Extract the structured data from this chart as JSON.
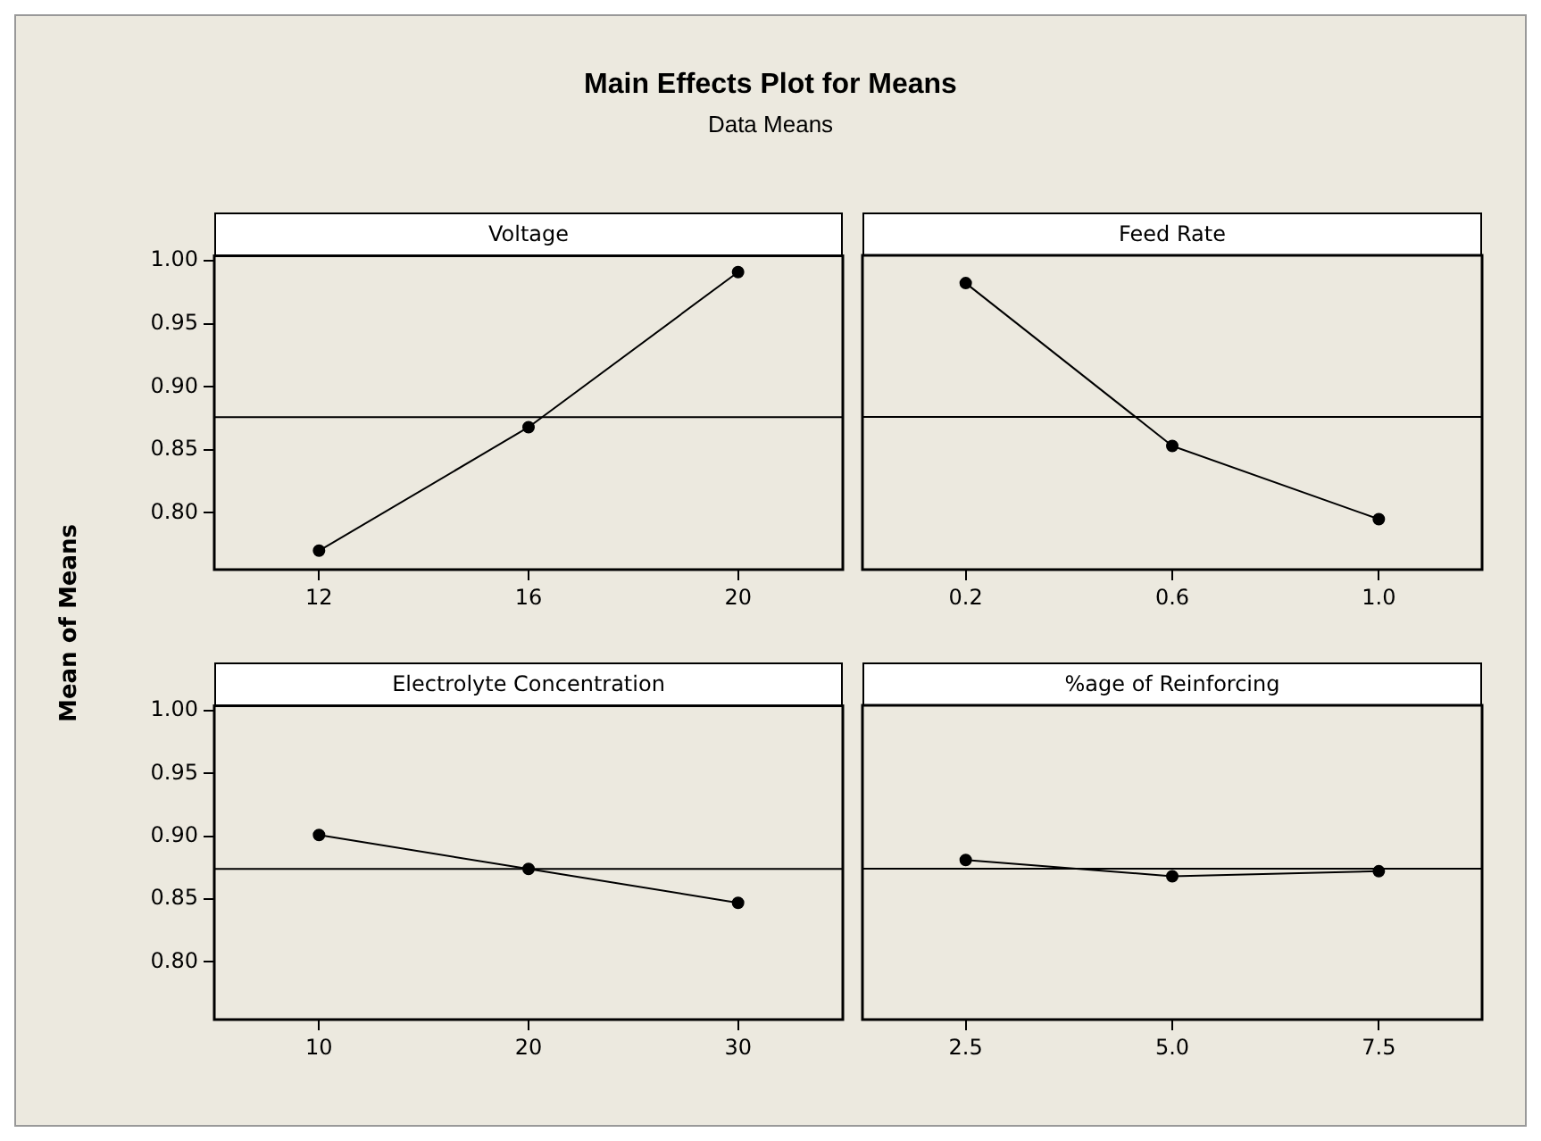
{
  "chart_data": [
    {
      "type": "line",
      "title": "Main Effects Plot for Means",
      "subtitle": "Data Means",
      "ylabel": "Mean of Means",
      "xlabel": "Voltage",
      "categories": [
        "12",
        "16",
        "20"
      ],
      "values": [
        0.77,
        0.868,
        0.991
      ],
      "color": "#000000",
      "marker": "circle",
      "ylim": [
        0.755,
        1.004
      ],
      "yticks": [
        {
          "value": 0.8,
          "label": "0.80"
        },
        {
          "value": 0.85,
          "label": "0.85"
        },
        {
          "value": 0.9,
          "label": "0.90"
        },
        {
          "value": 0.95,
          "label": "0.95"
        },
        {
          "value": 1.0,
          "label": "1.00"
        }
      ],
      "ref_lines": [
        {
          "axis": "y",
          "value": 0.876,
          "color": "#000000"
        }
      ],
      "grid": false
    },
    {
      "type": "line",
      "xlabel": "Feed Rate",
      "categories": [
        "0.2",
        "0.6",
        "1.0"
      ],
      "values": [
        0.982,
        0.853,
        0.795
      ],
      "color": "#000000",
      "marker": "circle",
      "ylim": [
        0.755,
        1.004
      ],
      "ref_lines": [
        {
          "axis": "y",
          "value": 0.876,
          "color": "#000000"
        }
      ],
      "grid": false,
      "tick_labels": "x"
    },
    {
      "type": "line",
      "xlabel": "Electrolyte Concentration",
      "categories": [
        "10",
        "20",
        "30"
      ],
      "values": [
        0.901,
        0.874,
        0.847
      ],
      "color": "#000000",
      "marker": "circle",
      "ylim": [
        0.754,
        1.004
      ],
      "yticks": [
        {
          "value": 0.8,
          "label": "0.80"
        },
        {
          "value": 0.85,
          "label": "0.85"
        },
        {
          "value": 0.9,
          "label": "0.90"
        },
        {
          "value": 0.95,
          "label": "0.95"
        },
        {
          "value": 1.0,
          "label": "1.00"
        }
      ],
      "ref_lines": [
        {
          "axis": "y",
          "value": 0.874,
          "color": "#000000"
        }
      ],
      "grid": false
    },
    {
      "type": "line",
      "xlabel": "%age of Reinforcing",
      "categories": [
        "2.5",
        "5.0",
        "7.5"
      ],
      "values": [
        0.881,
        0.868,
        0.872
      ],
      "color": "#000000",
      "marker": "circle",
      "ylim": [
        0.754,
        1.004
      ],
      "ref_lines": [
        {
          "axis": "y",
          "value": 0.874,
          "color": "#000000"
        }
      ],
      "grid": false,
      "tick_labels": "x"
    }
  ]
}
